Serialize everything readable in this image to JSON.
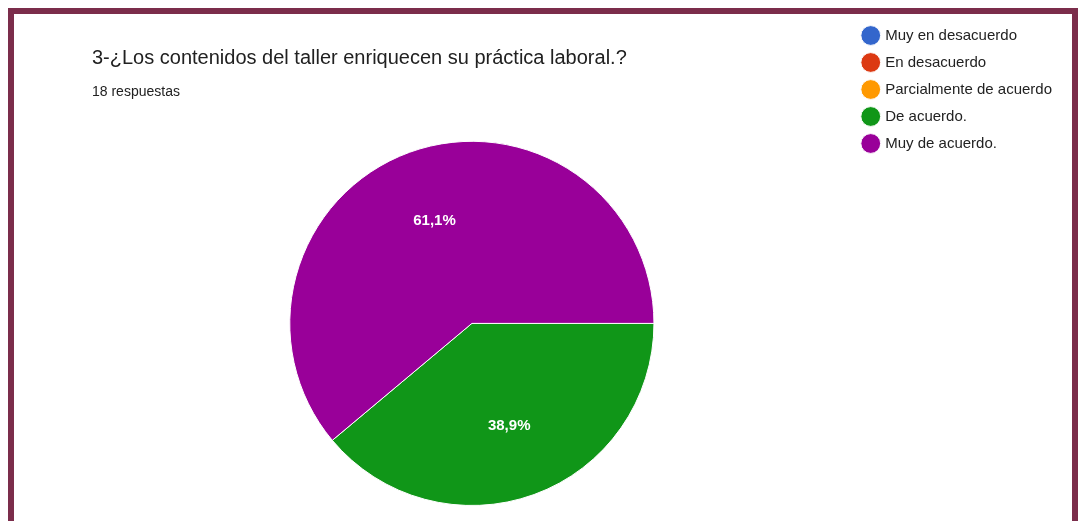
{
  "chart_data": {
    "type": "pie",
    "title": "3-¿Los contenidos del taller enriquecen su práctica laboral.?",
    "subtitle": "18 respuestas",
    "categories": [
      "Muy en desacuerdo",
      "En desacuerdo",
      "Parcialmente de acuerdo",
      "De acuerdo.",
      "Muy de acuerdo."
    ],
    "values": [
      0,
      0,
      0,
      38.9,
      61.1
    ],
    "colors": [
      "#3366cc",
      "#dc3912",
      "#ff9900",
      "#109618",
      "#990099"
    ],
    "value_labels": [
      null,
      null,
      null,
      "38,9%",
      "61,1%"
    ],
    "legend": "right"
  }
}
